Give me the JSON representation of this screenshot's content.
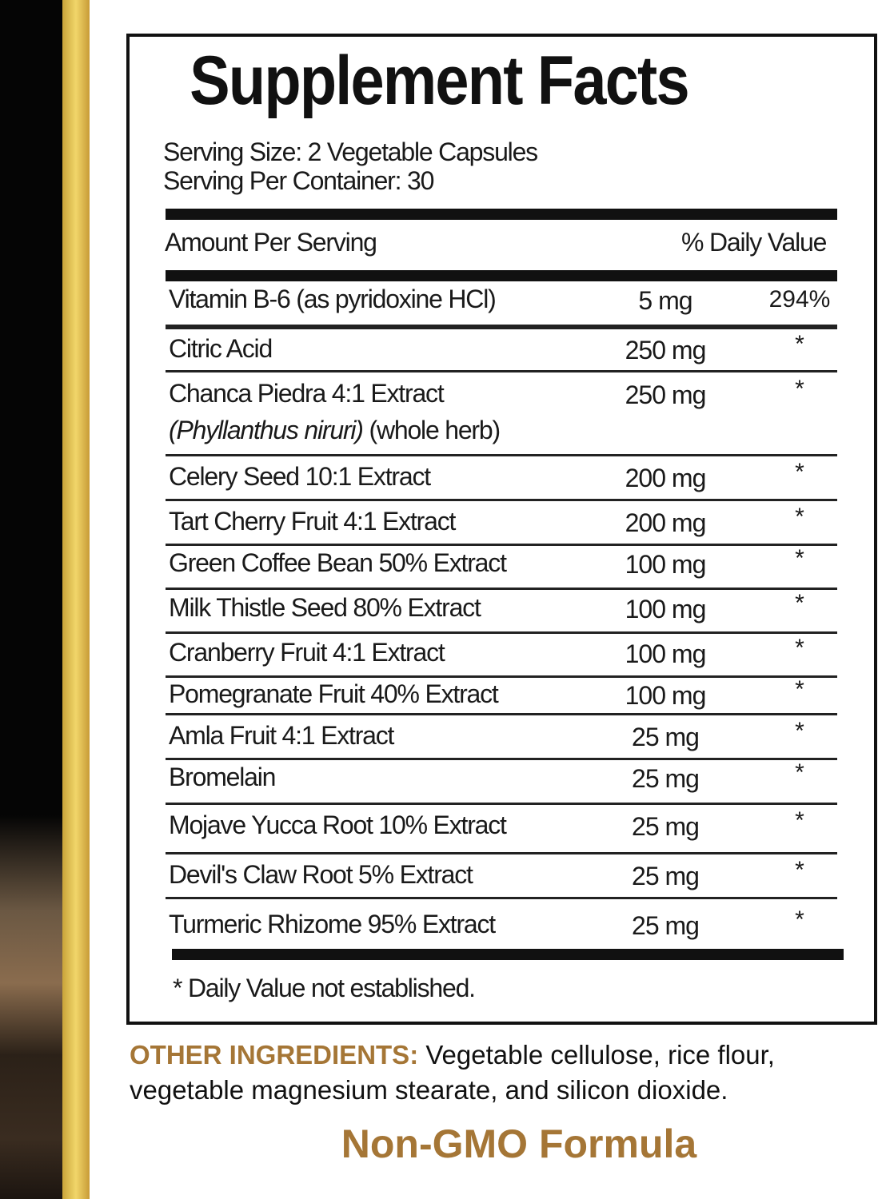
{
  "title": "Supplement Facts",
  "serving_size": "Serving Size: 2 Vegetable Capsules",
  "servings_per_container": "Serving Per Container: 30",
  "header": {
    "amount": "Amount Per Serving",
    "dv": "% Daily Value"
  },
  "rows": [
    {
      "name": "Vitamin B-6 (as pyridoxine HCl)",
      "amount": "5 mg",
      "dv": "294%"
    },
    {
      "name": "Citric Acid",
      "amount": "250 mg",
      "dv": "*"
    },
    {
      "name": "Chanca Piedra 4:1 Extract",
      "latin": "(Phyllanthus niruri)",
      "note": "(whole herb)",
      "amount": "250 mg",
      "dv": "*"
    },
    {
      "name": "Celery Seed 10:1 Extract",
      "amount": "200 mg",
      "dv": "*"
    },
    {
      "name": "Tart Cherry Fruit 4:1 Extract",
      "amount": "200 mg",
      "dv": "*"
    },
    {
      "name": "Green Coffee Bean 50% Extract",
      "amount": "100 mg",
      "dv": "*"
    },
    {
      "name": "Milk Thistle Seed 80% Extract",
      "amount": "100 mg",
      "dv": "*"
    },
    {
      "name": "Cranberry Fruit 4:1 Extract",
      "amount": "100 mg",
      "dv": "*"
    },
    {
      "name": "Pomegranate Fruit 40% Extract",
      "amount": "100 mg",
      "dv": "*"
    },
    {
      "name": "Amla Fruit 4:1 Extract",
      "amount": "25 mg",
      "dv": "*"
    },
    {
      "name": "Bromelain",
      "amount": "25 mg",
      "dv": "*"
    },
    {
      "name": "Mojave Yucca Root 10% Extract",
      "amount": "25 mg",
      "dv": "*"
    },
    {
      "name": "Devil's Claw Root 5% Extract",
      "amount": "25 mg",
      "dv": "*"
    },
    {
      "name": "Turmeric Rhizome 95% Extract",
      "amount": "25 mg",
      "dv": "*"
    }
  ],
  "footnote": "* Daily Value not established.",
  "other_ingredients": {
    "label": "OTHER INGREDIENTS:",
    "text": "Vegetable cellulose, rice flour, vegetable magnesium stearate, and silicon dioxide."
  },
  "badge": "Non-GMO Formula",
  "colors": {
    "accent": "#a57636",
    "gold": "#e8c95a"
  }
}
